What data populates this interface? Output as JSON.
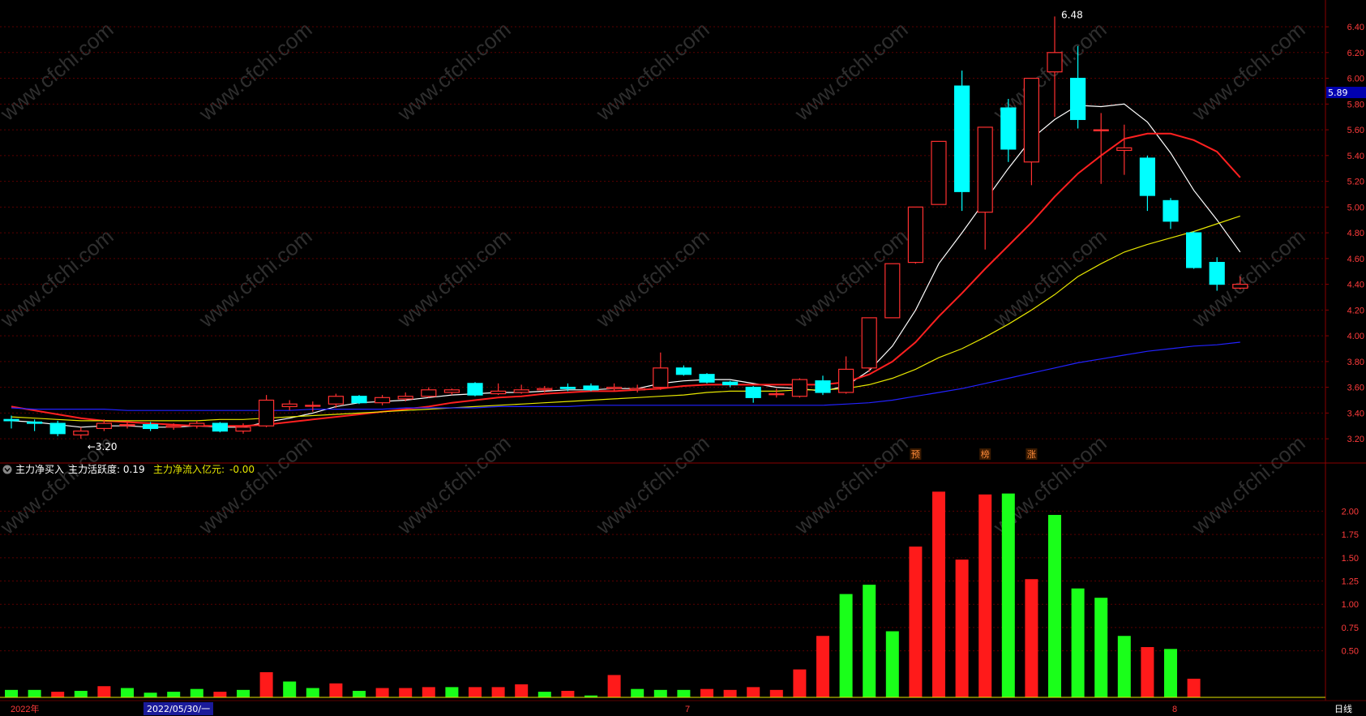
{
  "colors": {
    "up": "#ff3030",
    "down": "#00ffff",
    "grid": "#5a0000",
    "ma_white": "#ffffff",
    "ma_red": "#ff2020",
    "ma_yellow": "#e6e600",
    "ma_blue": "#2222ff",
    "vol_up": "#ff1a1a",
    "vol_down": "#1aff1a"
  },
  "price_axis": {
    "ticks": [
      "6.40",
      "6.20",
      "6.00",
      "5.80",
      "5.60",
      "5.40",
      "5.20",
      "5.00",
      "4.80",
      "4.60",
      "4.40",
      "4.20",
      "4.00",
      "3.80",
      "3.60",
      "3.40",
      "3.20"
    ],
    "current_label": "5.89"
  },
  "indicator_axis": {
    "ticks": [
      "2.00",
      "1.75",
      "1.50",
      "1.25",
      "1.00",
      "0.75",
      "0.50"
    ]
  },
  "annotations": {
    "high_label": "6.48",
    "low_label": "←3.20"
  },
  "event_marks": [
    {
      "index": 39,
      "text": "预"
    },
    {
      "index": 42,
      "text": "榜"
    },
    {
      "index": 44,
      "text": "涨"
    }
  ],
  "indicator_legend": {
    "name": "主力净买入",
    "activity": "主力活跃度: 0.19",
    "inflow_label": "主力净流入亿元:",
    "inflow_value": "-0.00"
  },
  "time_axis": {
    "start": "2022年",
    "selected": "2022/05/30/一",
    "m7": "7",
    "m8": "8",
    "period": "日线"
  },
  "watermark": "www.cfchi.com",
  "chart_data": {
    "type": "candlestick",
    "price_range": [
      3.1,
      6.52
    ],
    "candles": [
      {
        "o": 3.35,
        "c": 3.34,
        "h": 3.38,
        "l": 3.28
      },
      {
        "o": 3.33,
        "c": 3.32,
        "h": 3.35,
        "l": 3.26
      },
      {
        "o": 3.32,
        "c": 3.24,
        "h": 3.34,
        "l": 3.22
      },
      {
        "o": 3.23,
        "c": 3.26,
        "h": 3.29,
        "l": 3.2
      },
      {
        "o": 3.28,
        "c": 3.32,
        "h": 3.35,
        "l": 3.26
      },
      {
        "o": 3.31,
        "c": 3.31,
        "h": 3.34,
        "l": 3.28
      },
      {
        "o": 3.31,
        "c": 3.28,
        "h": 3.33,
        "l": 3.26
      },
      {
        "o": 3.29,
        "c": 3.3,
        "h": 3.32,
        "l": 3.27
      },
      {
        "o": 3.3,
        "c": 3.32,
        "h": 3.34,
        "l": 3.28
      },
      {
        "o": 3.32,
        "c": 3.26,
        "h": 3.33,
        "l": 3.25
      },
      {
        "o": 3.26,
        "c": 3.29,
        "h": 3.32,
        "l": 3.24
      },
      {
        "o": 3.3,
        "c": 3.5,
        "h": 3.54,
        "l": 3.29
      },
      {
        "o": 3.45,
        "c": 3.47,
        "h": 3.5,
        "l": 3.42
      },
      {
        "o": 3.46,
        "c": 3.46,
        "h": 3.49,
        "l": 3.41
      },
      {
        "o": 3.47,
        "c": 3.53,
        "h": 3.55,
        "l": 3.44
      },
      {
        "o": 3.53,
        "c": 3.48,
        "h": 3.54,
        "l": 3.47
      },
      {
        "o": 3.48,
        "c": 3.52,
        "h": 3.54,
        "l": 3.46
      },
      {
        "o": 3.51,
        "c": 3.53,
        "h": 3.56,
        "l": 3.49
      },
      {
        "o": 3.53,
        "c": 3.58,
        "h": 3.6,
        "l": 3.52
      },
      {
        "o": 3.56,
        "c": 3.58,
        "h": 3.59,
        "l": 3.54
      },
      {
        "o": 3.63,
        "c": 3.54,
        "h": 3.64,
        "l": 3.53
      },
      {
        "o": 3.55,
        "c": 3.57,
        "h": 3.63,
        "l": 3.54
      },
      {
        "o": 3.56,
        "c": 3.58,
        "h": 3.62,
        "l": 3.55
      },
      {
        "o": 3.58,
        "c": 3.59,
        "h": 3.61,
        "l": 3.56
      },
      {
        "o": 3.6,
        "c": 3.59,
        "h": 3.63,
        "l": 3.57
      },
      {
        "o": 3.61,
        "c": 3.58,
        "h": 3.63,
        "l": 3.57
      },
      {
        "o": 3.59,
        "c": 3.6,
        "h": 3.63,
        "l": 3.57
      },
      {
        "o": 3.58,
        "c": 3.59,
        "h": 3.62,
        "l": 3.56
      },
      {
        "o": 3.6,
        "c": 3.75,
        "h": 3.87,
        "l": 3.58
      },
      {
        "o": 3.75,
        "c": 3.7,
        "h": 3.77,
        "l": 3.69
      },
      {
        "o": 3.7,
        "c": 3.64,
        "h": 3.71,
        "l": 3.63
      },
      {
        "o": 3.64,
        "c": 3.62,
        "h": 3.65,
        "l": 3.6
      },
      {
        "o": 3.6,
        "c": 3.52,
        "h": 3.61,
        "l": 3.48
      },
      {
        "o": 3.55,
        "c": 3.55,
        "h": 3.59,
        "l": 3.52
      },
      {
        "o": 3.53,
        "c": 3.66,
        "h": 3.67,
        "l": 3.52
      },
      {
        "o": 3.65,
        "c": 3.56,
        "h": 3.69,
        "l": 3.54
      },
      {
        "o": 3.56,
        "c": 3.74,
        "h": 3.84,
        "l": 3.55
      },
      {
        "o": 3.75,
        "c": 4.14,
        "h": 4.14,
        "l": 3.72
      },
      {
        "o": 4.14,
        "c": 4.56,
        "h": 4.56,
        "l": 4.14
      },
      {
        "o": 4.57,
        "c": 5.0,
        "h": 5.0,
        "l": 4.56
      },
      {
        "o": 5.02,
        "c": 5.51,
        "h": 5.51,
        "l": 5.02
      },
      {
        "o": 5.94,
        "c": 5.12,
        "h": 6.06,
        "l": 4.97
      },
      {
        "o": 4.96,
        "c": 5.62,
        "h": 5.62,
        "l": 4.67
      },
      {
        "o": 5.77,
        "c": 5.45,
        "h": 5.84,
        "l": 5.35
      },
      {
        "o": 5.35,
        "c": 6.0,
        "h": 6.0,
        "l": 5.17
      },
      {
        "o": 6.05,
        "c": 6.2,
        "h": 6.48,
        "l": 5.7
      },
      {
        "o": 6.0,
        "c": 5.68,
        "h": 6.25,
        "l": 5.61
      },
      {
        "o": 5.6,
        "c": 5.6,
        "h": 5.73,
        "l": 5.18
      },
      {
        "o": 5.44,
        "c": 5.46,
        "h": 5.64,
        "l": 5.25
      },
      {
        "o": 5.38,
        "c": 5.09,
        "h": 5.4,
        "l": 4.97
      },
      {
        "o": 5.05,
        "c": 4.89,
        "h": 5.07,
        "l": 4.83
      },
      {
        "o": 4.8,
        "c": 4.53,
        "h": 4.81,
        "l": 4.52
      },
      {
        "o": 4.57,
        "c": 4.4,
        "h": 4.61,
        "l": 4.35
      },
      {
        "o": 4.37,
        "c": 4.4,
        "h": 4.46,
        "l": 4.36
      }
    ],
    "ma": [
      {
        "color": "#ffffff",
        "values": [
          3.34,
          3.33,
          3.31,
          3.29,
          3.3,
          3.3,
          3.29,
          3.29,
          3.3,
          3.29,
          3.29,
          3.33,
          3.36,
          3.4,
          3.45,
          3.48,
          3.49,
          3.5,
          3.52,
          3.54,
          3.55,
          3.56,
          3.56,
          3.57,
          3.58,
          3.58,
          3.59,
          3.59,
          3.63,
          3.65,
          3.66,
          3.66,
          3.63,
          3.6,
          3.59,
          3.57,
          3.61,
          3.73,
          3.92,
          4.2,
          4.56,
          4.8,
          5.05,
          5.3,
          5.53,
          5.68,
          5.79,
          5.78,
          5.8,
          5.66,
          5.42,
          5.13,
          4.9,
          4.65
        ]
      },
      {
        "color": "#ff2020",
        "values": [
          3.45,
          3.42,
          3.39,
          3.36,
          3.34,
          3.33,
          3.32,
          3.31,
          3.3,
          3.3,
          3.3,
          3.31,
          3.33,
          3.35,
          3.37,
          3.39,
          3.41,
          3.43,
          3.45,
          3.48,
          3.5,
          3.52,
          3.53,
          3.55,
          3.56,
          3.57,
          3.57,
          3.58,
          3.59,
          3.61,
          3.62,
          3.62,
          3.62,
          3.62,
          3.62,
          3.62,
          3.64,
          3.7,
          3.8,
          3.95,
          4.15,
          4.33,
          4.52,
          4.7,
          4.88,
          5.08,
          5.26,
          5.4,
          5.53,
          5.57,
          5.57,
          5.52,
          5.43,
          5.23
        ]
      },
      {
        "color": "#e6e600",
        "values": [
          3.37,
          3.36,
          3.35,
          3.34,
          3.34,
          3.34,
          3.34,
          3.34,
          3.34,
          3.35,
          3.35,
          3.36,
          3.37,
          3.38,
          3.39,
          3.4,
          3.41,
          3.42,
          3.43,
          3.44,
          3.45,
          3.46,
          3.47,
          3.48,
          3.49,
          3.5,
          3.51,
          3.52,
          3.53,
          3.54,
          3.56,
          3.57,
          3.57,
          3.57,
          3.58,
          3.58,
          3.59,
          3.62,
          3.67,
          3.74,
          3.83,
          3.9,
          3.99,
          4.09,
          4.2,
          4.32,
          4.46,
          4.56,
          4.65,
          4.71,
          4.76,
          4.81,
          4.87,
          4.93
        ]
      },
      {
        "color": "#2222ff",
        "values": [
          3.44,
          3.43,
          3.43,
          3.43,
          3.43,
          3.42,
          3.42,
          3.42,
          3.42,
          3.42,
          3.42,
          3.42,
          3.42,
          3.43,
          3.43,
          3.43,
          3.43,
          3.44,
          3.44,
          3.44,
          3.44,
          3.45,
          3.45,
          3.45,
          3.45,
          3.46,
          3.46,
          3.46,
          3.46,
          3.46,
          3.46,
          3.46,
          3.46,
          3.46,
          3.46,
          3.46,
          3.47,
          3.48,
          3.5,
          3.53,
          3.56,
          3.59,
          3.63,
          3.67,
          3.71,
          3.75,
          3.79,
          3.82,
          3.85,
          3.88,
          3.9,
          3.92,
          3.93,
          3.95
        ]
      }
    ],
    "indicator": {
      "range": [
        0,
        2.3
      ],
      "values": [
        0.08,
        0.08,
        0.06,
        0.07,
        0.12,
        0.1,
        0.05,
        0.06,
        0.09,
        0.06,
        0.08,
        0.27,
        0.17,
        0.1,
        0.15,
        0.07,
        0.1,
        0.1,
        0.11,
        0.11,
        0.11,
        0.11,
        0.14,
        0.06,
        0.07,
        0.02,
        0.24,
        0.09,
        0.08,
        0.08,
        0.09,
        0.08,
        0.11,
        0.08,
        0.3,
        0.66,
        1.11,
        1.21,
        0.71,
        1.62,
        2.21,
        1.48,
        2.18,
        2.19,
        1.27,
        1.96,
        1.17,
        1.07,
        0.66,
        0.54,
        0.52,
        0.2,
        0.0,
        0.0
      ],
      "up": [
        false,
        false,
        true,
        false,
        true,
        false,
        false,
        false,
        false,
        true,
        false,
        true,
        false,
        false,
        true,
        false,
        true,
        true,
        true,
        false,
        true,
        true,
        true,
        false,
        true,
        false,
        true,
        false,
        false,
        false,
        true,
        true,
        true,
        true,
        true,
        true,
        false,
        false,
        false,
        true,
        true,
        true,
        true,
        false,
        true,
        false,
        false,
        false,
        false,
        true,
        false,
        true,
        true,
        true
      ]
    }
  }
}
